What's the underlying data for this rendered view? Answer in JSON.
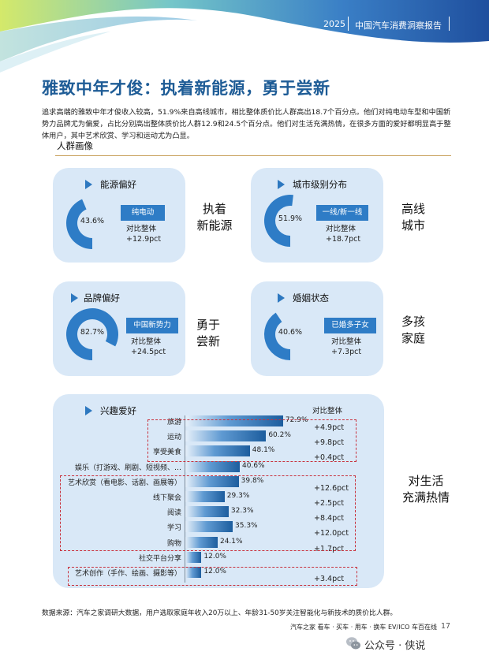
{
  "header": {
    "year": "2025",
    "report_title": "中国汽车消费洞察报告"
  },
  "title": "雅致中年才俊：执着新能源，勇于尝新",
  "intro": "追求高端的雅致中年才俊收入较高，51.9%来自高线城市，相比整体质价比人群高出18.7个百分点。他们对纯电动车型和中国新势力品牌尤为偏爱，占比分别高出整体质价比人群12.9和24.5个百分点。他们对生活充满热情，在很多方面的爱好都明显高于整体用户，其中艺术欣赏、学习和运动尤为凸显。",
  "section_label": "人群画像",
  "cards": {
    "energy": {
      "title": "能源偏好",
      "pct": "43.6%",
      "value": 43.6,
      "tag": "纯电动",
      "cmp_label": "对比整体",
      "delta": "+12.9pct",
      "side1": "执着",
      "side2": "新能源"
    },
    "city": {
      "title": "城市级别分布",
      "pct": "51.9%",
      "value": 51.9,
      "tag": "一线/新一线",
      "cmp_label": "对比整体",
      "delta": "+18.7pct",
      "side1": "高线",
      "side2": "城市"
    },
    "brand": {
      "title": "品牌偏好",
      "pct": "82.7%",
      "value": 82.7,
      "tag": "中国新势力",
      "cmp_label": "对比整体",
      "delta": "+24.5pct",
      "side1": "勇于",
      "side2": "尝新"
    },
    "marital": {
      "title": "婚姻状态",
      "pct": "40.6%",
      "value": 40.6,
      "tag": "已婚多子女",
      "cmp_label": "对比整体",
      "delta": "+7.3pct",
      "side1": "多孩",
      "side2": "家庭"
    }
  },
  "interests": {
    "title": "兴趣爱好",
    "compare_header": "对比整体",
    "side1": "对生活",
    "side2": "充满热情",
    "items": [
      {
        "label": "旅游",
        "value": 72.9,
        "pct": "72.9%",
        "delta": "+4.9pct"
      },
      {
        "label": "运动",
        "value": 60.2,
        "pct": "60.2%",
        "delta": "+9.8pct"
      },
      {
        "label": "享受美食",
        "value": 48.1,
        "pct": "48.1%",
        "delta": "+0.4pct"
      },
      {
        "label": "娱乐（打游戏、刷剧、短视频、…",
        "value": 40.6,
        "pct": "40.6%",
        "delta": ""
      },
      {
        "label": "艺术欣赏（看电影、话剧、画展等）",
        "value": 39.8,
        "pct": "39.8%",
        "delta": "+12.6pct"
      },
      {
        "label": "线下聚会",
        "value": 29.3,
        "pct": "29.3%",
        "delta": "+2.5pct"
      },
      {
        "label": "阅读",
        "value": 32.3,
        "pct": "32.3%",
        "delta": "+8.4pct"
      },
      {
        "label": "学习",
        "value": 35.3,
        "pct": "35.3%",
        "delta": "+12.0pct"
      },
      {
        "label": "购物",
        "value": 24.1,
        "pct": "24.1%",
        "delta": "+1.7pct"
      },
      {
        "label": "社交平台分享",
        "value": 12.0,
        "pct": "12.0%",
        "delta": ""
      },
      {
        "label": "艺术创作（手作、绘画、摄影等）",
        "value": 12.0,
        "pct": "12.0%",
        "delta": "+3.4pct"
      }
    ]
  },
  "footnote": "数据来源：汽车之家调研大数据，用户选取家庭年收入20万以上、年龄31-50岁关注智能化与新技术的质价比人群。",
  "brand_line": "汽车之家 看车 · 买车 · 用车 · 换车   EV/ICO 车百在线",
  "page_number": "17",
  "wechat": "公众号 · 侠说",
  "colors": {
    "title_blue": "#1e5c96",
    "accent_blue": "#2e7cc6",
    "card_bg": "#d9e8f7",
    "dash_red": "#c8303c"
  }
}
